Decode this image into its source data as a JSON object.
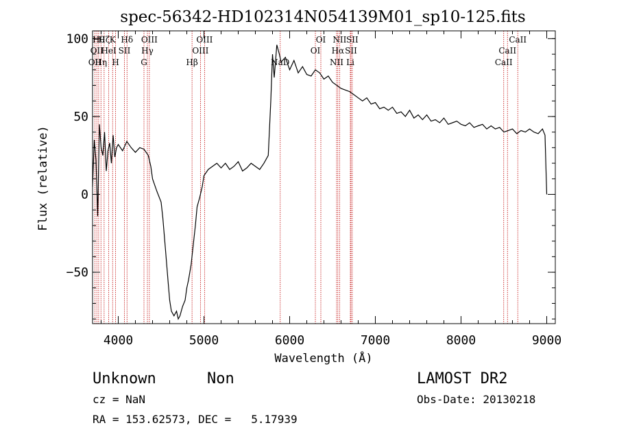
{
  "chart_data": {
    "type": "line",
    "title": "spec-56342-HD102314N054139M01_sp10-125.fits",
    "xlabel": "Wavelength (Å)",
    "ylabel": "Flux (relative)",
    "xlim": [
      3700,
      9100
    ],
    "ylim": [
      -83,
      105
    ],
    "xticks": [
      4000,
      5000,
      6000,
      7000,
      8000,
      9000
    ],
    "yticks": [
      -50,
      0,
      50,
      100
    ],
    "grid": false,
    "series": [
      {
        "x": [
          3700,
          3720,
          3740,
          3760,
          3780,
          3800,
          3820,
          3840,
          3860,
          3880,
          3900,
          3920,
          3940,
          3960,
          3980,
          4000,
          4050,
          4100,
          4150,
          4200,
          4250,
          4300,
          4350,
          4380,
          4400,
          4450,
          4500,
          4520,
          4550,
          4580,
          4600,
          4620,
          4650,
          4680,
          4700,
          4720,
          4750,
          4780,
          4800,
          4820,
          4850,
          4880,
          4900,
          4920,
          4950,
          4980,
          5000,
          5050,
          5100,
          5150,
          5200,
          5250,
          5300,
          5350,
          5400,
          5450,
          5500,
          5550,
          5600,
          5650,
          5700,
          5750,
          5780,
          5800,
          5820,
          5850,
          5880,
          5900,
          5950,
          6000,
          6050,
          6100,
          6150,
          6200,
          6250,
          6300,
          6350,
          6400,
          6450,
          6500,
          6550,
          6600,
          6650,
          6700,
          6750,
          6800,
          6850,
          6900,
          6950,
          7000,
          7050,
          7100,
          7150,
          7200,
          7250,
          7300,
          7350,
          7400,
          7450,
          7500,
          7550,
          7600,
          7650,
          7700,
          7750,
          7800,
          7850,
          7900,
          7950,
          8000,
          8050,
          8100,
          8150,
          8200,
          8250,
          8300,
          8350,
          8400,
          8450,
          8500,
          8550,
          8600,
          8650,
          8700,
          8750,
          8800,
          8850,
          8900,
          8950,
          8980,
          9000
        ],
        "y": [
          5,
          35,
          22,
          -14,
          45,
          30,
          25,
          40,
          15,
          28,
          33,
          20,
          38,
          24,
          30,
          32,
          28,
          34,
          30,
          27,
          30,
          29,
          25,
          18,
          10,
          2,
          -5,
          -15,
          -35,
          -55,
          -68,
          -75,
          -78,
          -75,
          -80,
          -78,
          -72,
          -68,
          -60,
          -55,
          -45,
          -30,
          -20,
          -8,
          -2,
          5,
          12,
          16,
          18,
          20,
          17,
          20,
          16,
          18,
          21,
          15,
          17,
          20,
          18,
          16,
          20,
          25,
          60,
          90,
          75,
          96,
          90,
          85,
          88,
          80,
          86,
          78,
          82,
          77,
          76,
          80,
          78,
          74,
          76,
          72,
          70,
          68,
          67,
          66,
          64,
          62,
          60,
          62,
          58,
          59,
          55,
          56,
          54,
          56,
          52,
          53,
          50,
          54,
          49,
          51,
          48,
          51,
          47,
          48,
          46,
          49,
          45,
          46,
          47,
          45,
          44,
          46,
          43,
          44,
          45,
          42,
          44,
          42,
          43,
          40,
          41,
          42,
          39,
          41,
          40,
          42,
          40,
          39,
          42,
          38,
          0
        ]
      }
    ],
    "lines": [
      {
        "w": 3727,
        "label": "OII",
        "row": 2
      },
      {
        "w": 3750,
        "label": "OII",
        "row": 1
      },
      {
        "w": 3771,
        "label": "Hθ",
        "row": 0
      },
      {
        "w": 3798,
        "label": "Hη",
        "row": 2
      },
      {
        "w": 3835,
        "label": "Hζ",
        "row": 0
      },
      {
        "w": 3889,
        "label": "HeI",
        "row": 1
      },
      {
        "w": 3934,
        "label": "K",
        "row": 0
      },
      {
        "w": 3969,
        "label": "H",
        "row": 2
      },
      {
        "w": 4072,
        "label": "SII",
        "row": 1
      },
      {
        "w": 4102,
        "label": "Hδ",
        "row": 0
      },
      {
        "w": 4300,
        "label": "G",
        "row": 2
      },
      {
        "w": 4340,
        "label": "Hγ",
        "row": 1
      },
      {
        "w": 4363,
        "label": "OIII",
        "row": 0
      },
      {
        "w": 4861,
        "label": "Hβ",
        "row": 2
      },
      {
        "w": 4959,
        "label": "OIII",
        "row": 1
      },
      {
        "w": 5007,
        "label": "OIII",
        "row": 0
      },
      {
        "w": 5890,
        "label": "NaD",
        "row": 2
      },
      {
        "w": 6300,
        "label": "OI",
        "row": 1
      },
      {
        "w": 6364,
        "label": "OI",
        "row": 0
      },
      {
        "w": 6548,
        "label": "NII",
        "row": 2
      },
      {
        "w": 6563,
        "label": "Hα",
        "row": 1
      },
      {
        "w": 6583,
        "label": "NII",
        "row": 0
      },
      {
        "w": 6708,
        "label": "Li",
        "row": 2
      },
      {
        "w": 6716,
        "label": "SII",
        "row": 1
      },
      {
        "w": 6731,
        "label": "SII",
        "row": 0
      },
      {
        "w": 8498,
        "label": "CaII",
        "row": 2
      },
      {
        "w": 8542,
        "label": "CaII",
        "row": 1
      },
      {
        "w": 8662,
        "label": "CaII",
        "row": 0
      }
    ]
  },
  "info": {
    "class": "Unknown",
    "subclass": "Non",
    "survey": "LAMOST DR2",
    "cz": "cz = NaN",
    "obs_date": "Obs-Date: 20130218",
    "coords": "RA = 153.62573, DEC =   5.17939"
  }
}
